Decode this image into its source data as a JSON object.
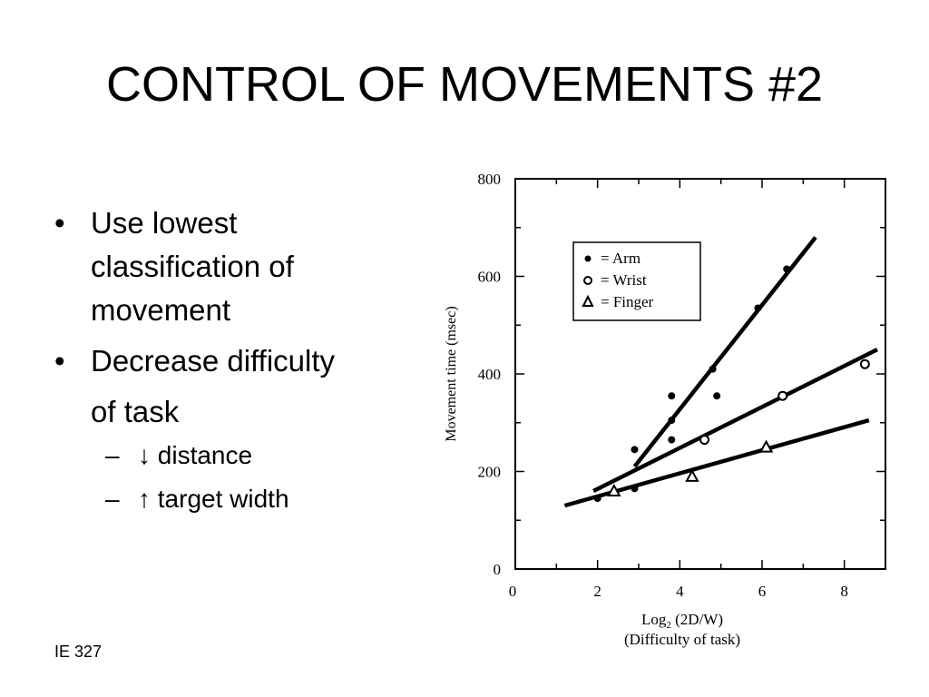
{
  "slide": {
    "title": "CONTROL OF MOVEMENTS #2",
    "footer": "IE 327",
    "bullets": [
      {
        "marker": "•",
        "lines": [
          "Use lowest",
          "classification of",
          "movement"
        ]
      },
      {
        "marker": "•",
        "lines": [
          "Decrease difficulty",
          "of task"
        ]
      }
    ],
    "subbullets": [
      {
        "marker": "–",
        "text": "↓ distance"
      },
      {
        "marker": "–",
        "text": "↑ target width"
      }
    ]
  },
  "chart_data": {
    "type": "scatter",
    "ylabel": "Movement time (msec)",
    "xlabel_line1": "Log",
    "xlabel_sub": "2",
    "xlabel_line1_rest": " (2D/W)",
    "xlabel_line2": "(Difficulty of task)",
    "xlim": [
      0,
      9
    ],
    "ylim": [
      0,
      800
    ],
    "xticks": [
      0,
      2,
      4,
      6,
      8
    ],
    "yticks": [
      0,
      200,
      400,
      600,
      800
    ],
    "legend_position": "upper-left",
    "series": [
      {
        "name": "= Arm",
        "marker": "filled-circle",
        "points": [
          [
            2.0,
            145
          ],
          [
            2.9,
            245
          ],
          [
            2.9,
            165
          ],
          [
            3.8,
            355
          ],
          [
            3.8,
            305
          ],
          [
            3.8,
            265
          ],
          [
            4.8,
            410
          ],
          [
            4.9,
            355
          ],
          [
            5.9,
            535
          ],
          [
            6.6,
            615
          ]
        ],
        "fit": [
          [
            2.9,
            210
          ],
          [
            7.3,
            680
          ]
        ]
      },
      {
        "name": "= Wrist",
        "marker": "open-circle",
        "points": [
          [
            4.6,
            265
          ],
          [
            6.5,
            355
          ],
          [
            8.5,
            420
          ]
        ],
        "fit": [
          [
            1.9,
            160
          ],
          [
            8.8,
            450
          ]
        ]
      },
      {
        "name": "= Finger",
        "marker": "triangle",
        "points": [
          [
            2.4,
            160
          ],
          [
            4.3,
            190
          ],
          [
            6.1,
            250
          ]
        ],
        "fit": [
          [
            1.2,
            130
          ],
          [
            8.6,
            305
          ]
        ]
      }
    ]
  }
}
